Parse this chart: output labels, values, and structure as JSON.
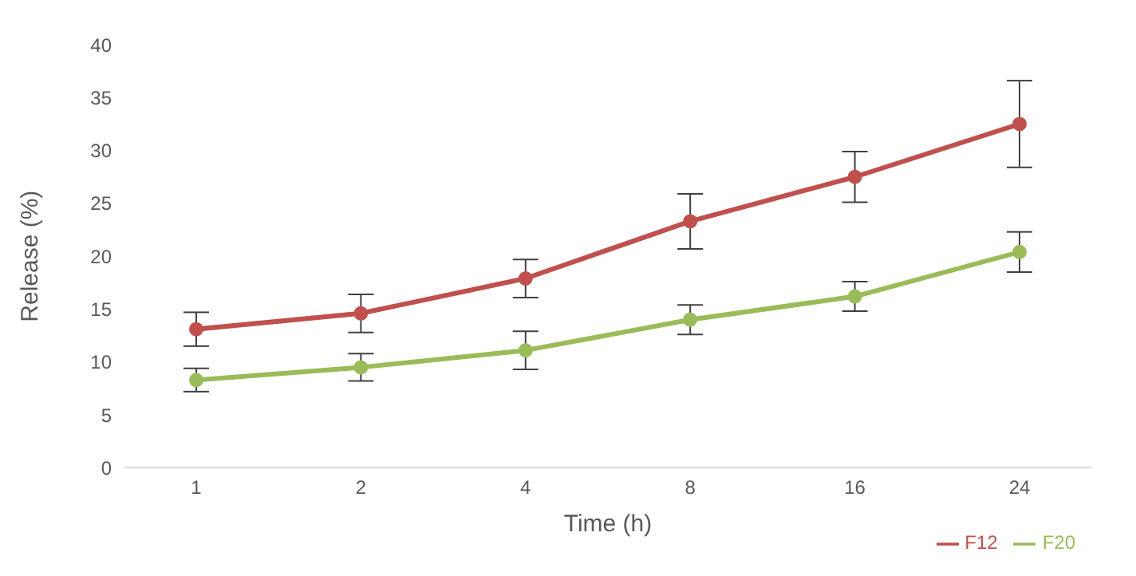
{
  "chart_data": {
    "type": "line",
    "xlabel": "Time (h)",
    "ylabel": "Release (%)",
    "categories": [
      "1",
      "2",
      "4",
      "8",
      "16",
      "24"
    ],
    "series": [
      {
        "name": "F12",
        "color": "#c0504d",
        "values": [
          13.1,
          14.6,
          17.9,
          23.3,
          27.5,
          32.5
        ],
        "errors": [
          1.6,
          1.8,
          1.8,
          2.6,
          2.4,
          4.1
        ]
      },
      {
        "name": "F20",
        "color": "#9bbb59",
        "values": [
          8.3,
          9.5,
          11.1,
          14.0,
          16.2,
          20.4
        ],
        "errors": [
          1.1,
          1.3,
          1.8,
          1.4,
          1.4,
          1.9
        ]
      }
    ],
    "ylim": [
      0,
      40
    ],
    "yticks": [
      0,
      5,
      10,
      15,
      20,
      25,
      30,
      35,
      40
    ],
    "grid": false,
    "legend": "bottom right",
    "marker": "circle",
    "line_style": "solid"
  }
}
